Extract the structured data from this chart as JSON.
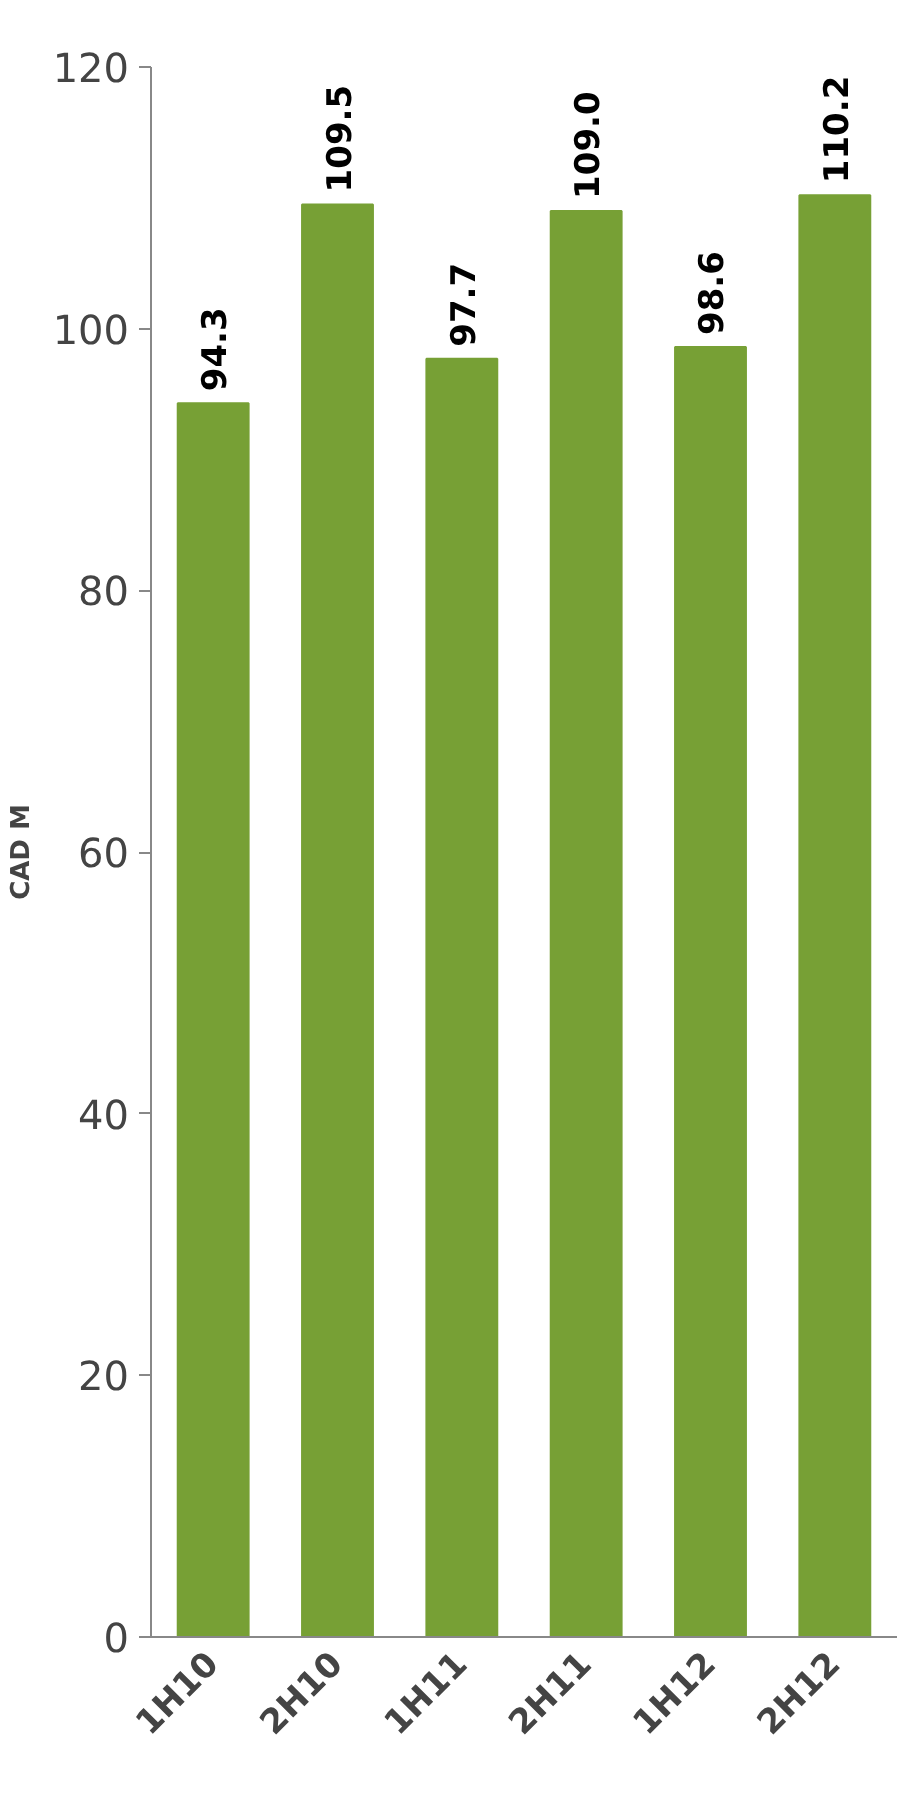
{
  "chart_data": {
    "type": "bar",
    "ylabel": "CAD M",
    "categories": [
      "1H10",
      "2H10",
      "1H11",
      "2H11",
      "1H12",
      "2H12"
    ],
    "values": [
      94.3,
      109.5,
      97.7,
      109.0,
      98.6,
      110.2
    ],
    "value_labels": [
      "94.3",
      "109.5",
      "97.7",
      "109.0",
      "98.6",
      "110.2"
    ],
    "color": "#77a035",
    "ylim": [
      0,
      120
    ],
    "yticks": [
      0,
      20,
      40,
      60,
      80,
      100,
      120
    ],
    "grid": false
  }
}
